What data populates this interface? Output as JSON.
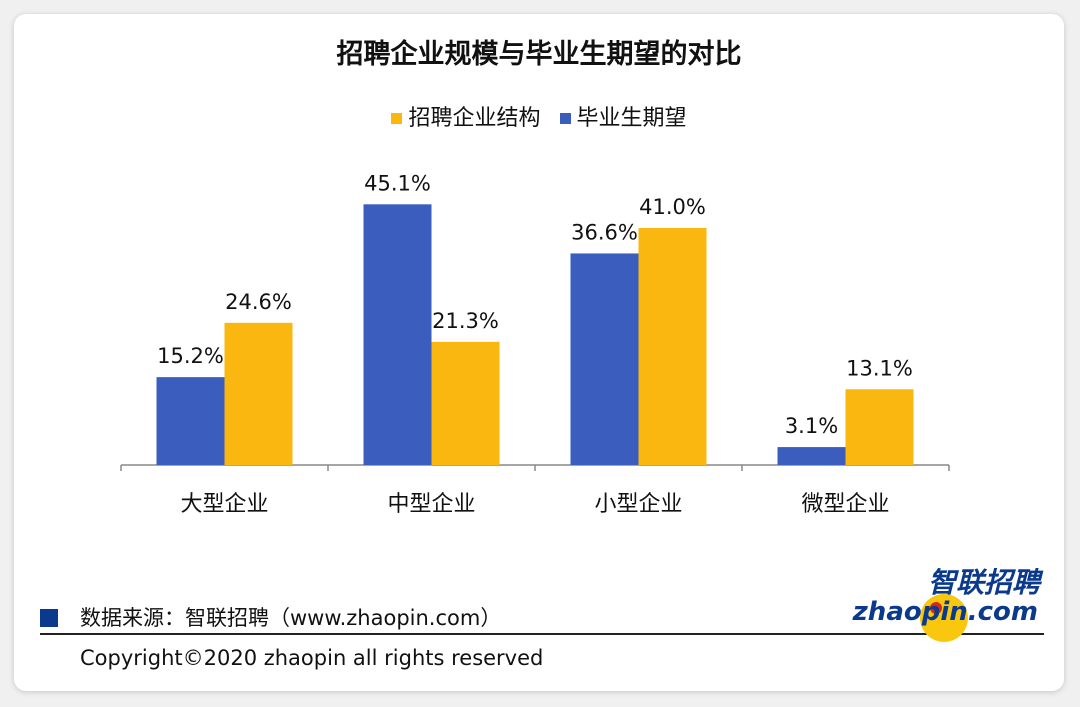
{
  "title": "招聘企业规模与毕业生期望的对比",
  "legend": {
    "series_a": "招聘企业结构",
    "series_b": "毕业生期望"
  },
  "colors": {
    "enterprise": "#F9B70F",
    "expectation": "#3A5DBE",
    "source_swatch": "#0B3A8C",
    "logo_ball": "#F9C80E",
    "logo_dot": "#D9261C"
  },
  "chart_data": {
    "type": "bar",
    "title": "招聘企业规模与毕业生期望的对比",
    "categories": [
      "大型企业",
      "中型企业",
      "小型企业",
      "微型企业"
    ],
    "series": [
      {
        "name": "毕业生期望",
        "values": [
          15.2,
          45.1,
          36.6,
          3.1
        ]
      },
      {
        "name": "招聘企业结构",
        "values": [
          24.6,
          21.3,
          41.0,
          13.1
        ]
      }
    ],
    "data_labels": [
      [
        "15.2%",
        "45.1%",
        "36.6%",
        "3.1%"
      ],
      [
        "24.6%",
        "21.3%",
        "41.0%",
        "13.1%"
      ]
    ],
    "unit": "%",
    "ylim": [
      0,
      50
    ],
    "grid": false,
    "legend_position": "top-center"
  },
  "footer": {
    "source": "数据来源：智联招聘（www.zhaopin.com）",
    "copyright": "Copyright©2020 zhaopin all rights reserved"
  },
  "logo": {
    "cn": "智联招聘",
    "en": "zhaopin.com"
  }
}
